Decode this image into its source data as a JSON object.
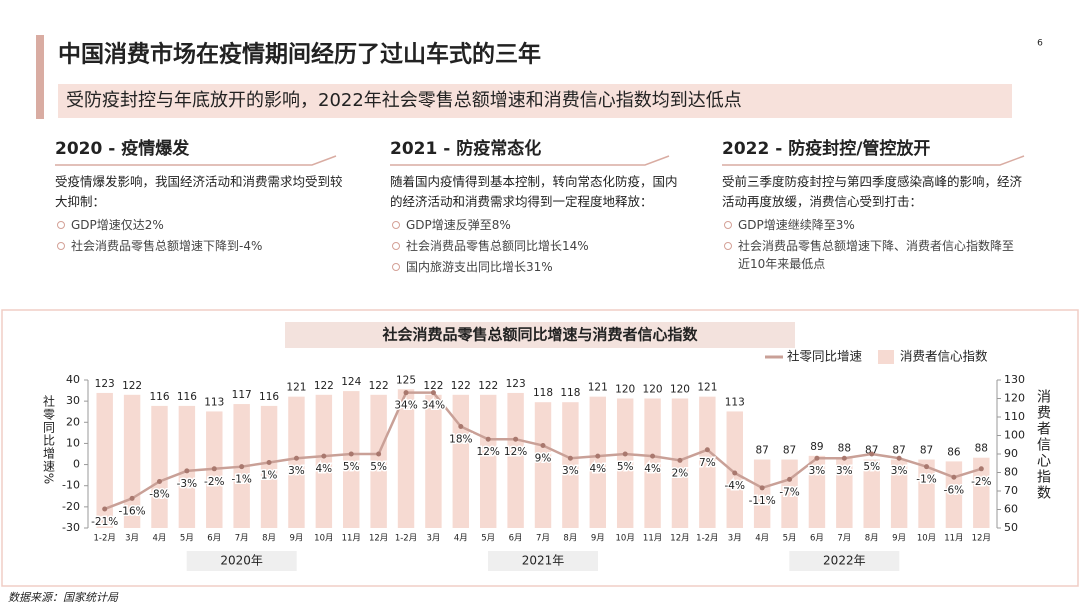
{
  "page_number": "6",
  "header": {
    "title": "中国消费市场在疫情期间经历了过山车式的三年",
    "subtitle": "受防疫封控与年底放开的影响，2022年社会零售总额增速和消费信心指数均到达低点"
  },
  "sections": [
    {
      "title": "2020 - 疫情爆发",
      "intro": "受疫情爆发影响，我国经济活动和消费需求均受到较大抑制：",
      "bullets": [
        "GDP增速仅达2%",
        "社会消费品零售总额增速下降到-4%"
      ]
    },
    {
      "title": "2021 - 防疫常态化",
      "intro": "随着国内疫情得到基本控制，转向常态化防疫，国内的经济活动和消费需求均得到一定程度地释放：",
      "bullets": [
        "GDP增速反弹至8%",
        "社会消费品零售总额同比增长14%",
        "国内旅游支出同比增长31%"
      ]
    },
    {
      "title": "2022 - 防疫封控/管控放开",
      "intro": "受前三季度防疫封控与第四季度感染高峰的影响，经济活动再度放缓，消费信心受到打击：",
      "bullets": [
        "GDP增速继续降至3%",
        "社会消费品零售总额增速下降、消费者信心指数降至近10年来最低点"
      ]
    }
  ],
  "chart_data": {
    "type": "combo",
    "title": "社会消费品零售总额同比增速与消费者信心指数",
    "y_label": "社零同比增速%",
    "y2_label": "消费者信心指数",
    "categories": [
      "1-2月",
      "3月",
      "4月",
      "5月",
      "6月",
      "7月",
      "8月",
      "9月",
      "10月",
      "11月",
      "12月",
      "1-2月",
      "3月",
      "4月",
      "5月",
      "6月",
      "7月",
      "8月",
      "9月",
      "10月",
      "11月",
      "12月",
      "1-2月",
      "3月",
      "4月",
      "5月",
      "6月",
      "7月",
      "8月",
      "9月",
      "10月",
      "11月",
      "12月"
    ],
    "groups": [
      "2020年",
      "2021年",
      "2022年"
    ],
    "series": [
      {
        "name": "社零同比增速",
        "type": "line",
        "color": "#c9a097",
        "values": [
          -21,
          -16,
          -8,
          -3,
          -2,
          -1,
          1,
          3,
          4,
          5,
          5,
          34,
          34,
          18,
          12,
          12,
          9,
          3,
          4,
          5,
          4,
          2,
          7,
          -4,
          -11,
          -7,
          3,
          3,
          5,
          3,
          -1,
          -6,
          -2
        ],
        "value_labels": [
          "-21%",
          "-16%",
          "-8%",
          "-3%",
          "-2%",
          "-1%",
          "1%",
          "3%",
          "4%",
          "5%",
          "5%",
          "34%",
          "34%",
          "18%",
          "12%",
          "12%",
          "9%",
          "3%",
          "4%",
          "5%",
          "4%",
          "2%",
          "7%",
          "-4%",
          "-11%",
          "-7%",
          "3%",
          "3%",
          "5%",
          "3%",
          "-1%",
          "-6%",
          "-2%"
        ]
      },
      {
        "name": "消费者信心指数",
        "type": "bar",
        "axis": "y2",
        "color": "#f6dad2",
        "values": [
          123,
          122,
          116,
          116,
          113,
          117,
          116,
          121,
          122,
          124,
          122,
          125,
          122,
          122,
          122,
          123,
          118,
          118,
          121,
          120,
          120,
          120,
          121,
          113,
          87,
          87,
          89,
          88,
          87,
          87,
          87,
          86,
          88
        ]
      }
    ],
    "ylim": [
      -30,
      40
    ],
    "yticks": [
      -30,
      -20,
      -10,
      0,
      10,
      20,
      30,
      40
    ],
    "y2lim": [
      50,
      130
    ],
    "y2ticks": [
      50,
      60,
      70,
      80,
      90,
      100,
      110,
      120,
      130
    ]
  },
  "source": "数据来源：国家统计局"
}
